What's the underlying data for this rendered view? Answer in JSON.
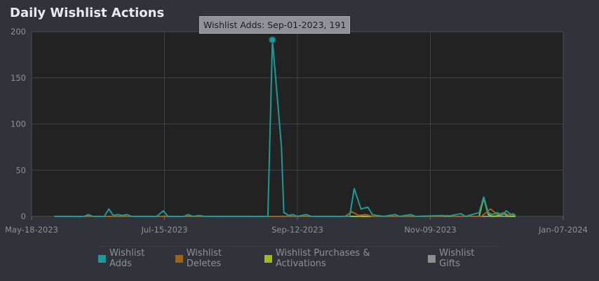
{
  "panel": {
    "title": "Daily Wishlist Actions"
  },
  "tooltip": {
    "text": "Wishlist Adds: Sep-01-2023, 191"
  },
  "colors": {
    "background": "#30333a",
    "plot_background": "#222222",
    "grid": "#3f4248",
    "adds": "#1a9b99",
    "deletes": "#a0611a",
    "purchases": "#9cbc1e",
    "gifts": "#8e8e8e"
  },
  "chart_data": {
    "type": "line",
    "title": "Daily Wishlist Actions",
    "x_type": "date",
    "xlim": [
      "2023-05-18",
      "2024-01-07"
    ],
    "x_ticks": [
      "May-18-2023",
      "Jul-15-2023",
      "Sep-12-2023",
      "Nov-09-2023",
      "Jan-07-2024"
    ],
    "ylim": [
      0,
      200
    ],
    "y_ticks": [
      "0",
      "50",
      "100",
      "150",
      "200"
    ],
    "grid": true,
    "legend_placement": "bottom",
    "series": [
      {
        "name": "Wishlist Adds",
        "color": "#1a9b99",
        "points": [
          [
            "2023-05-28",
            0
          ],
          [
            "2023-06-10",
            0
          ],
          [
            "2023-06-12",
            2
          ],
          [
            "2023-06-14",
            0
          ],
          [
            "2023-06-19",
            0
          ],
          [
            "2023-06-21",
            8
          ],
          [
            "2023-06-23",
            1
          ],
          [
            "2023-06-25",
            2
          ],
          [
            "2023-06-27",
            1
          ],
          [
            "2023-06-29",
            2
          ],
          [
            "2023-07-01",
            0
          ],
          [
            "2023-07-12",
            0
          ],
          [
            "2023-07-15",
            6
          ],
          [
            "2023-07-17",
            0
          ],
          [
            "2023-07-24",
            0
          ],
          [
            "2023-07-26",
            2
          ],
          [
            "2023-07-28",
            0
          ],
          [
            "2023-07-31",
            1
          ],
          [
            "2023-08-02",
            0
          ],
          [
            "2023-08-30",
            0
          ],
          [
            "2023-09-01",
            191
          ],
          [
            "2023-09-05",
            75
          ],
          [
            "2023-09-06",
            4
          ],
          [
            "2023-09-07",
            3
          ],
          [
            "2023-09-08",
            1
          ],
          [
            "2023-09-10",
            2
          ],
          [
            "2023-09-12",
            0
          ],
          [
            "2023-09-16",
            2
          ],
          [
            "2023-09-18",
            0
          ],
          [
            "2023-10-05",
            0
          ],
          [
            "2023-10-07",
            30
          ],
          [
            "2023-10-10",
            8
          ],
          [
            "2023-10-13",
            10
          ],
          [
            "2023-10-15",
            2
          ],
          [
            "2023-10-17",
            1
          ],
          [
            "2023-10-20",
            0
          ],
          [
            "2023-10-25",
            2
          ],
          [
            "2023-10-27",
            0
          ],
          [
            "2023-11-01",
            2
          ],
          [
            "2023-11-03",
            0
          ],
          [
            "2023-11-15",
            1
          ],
          [
            "2023-11-17",
            0
          ],
          [
            "2023-11-23",
            3
          ],
          [
            "2023-11-25",
            0
          ],
          [
            "2023-12-01",
            4
          ],
          [
            "2023-12-03",
            21
          ],
          [
            "2023-12-05",
            4
          ],
          [
            "2023-12-07",
            2
          ],
          [
            "2023-12-09",
            4
          ],
          [
            "2023-12-11",
            1
          ],
          [
            "2023-12-13",
            6
          ],
          [
            "2023-12-15",
            2
          ],
          [
            "2023-12-17",
            1
          ]
        ]
      },
      {
        "name": "Wishlist Deletes",
        "color": "#a0611a",
        "points": [
          [
            "2023-05-28",
            0
          ],
          [
            "2023-10-03",
            0
          ],
          [
            "2023-10-06",
            5
          ],
          [
            "2023-10-09",
            1
          ],
          [
            "2023-10-12",
            2
          ],
          [
            "2023-10-15",
            0
          ],
          [
            "2023-11-15",
            0
          ],
          [
            "2023-11-17",
            1
          ],
          [
            "2023-11-19",
            0
          ],
          [
            "2023-12-02",
            0
          ],
          [
            "2023-12-06",
            8
          ],
          [
            "2023-12-09",
            2
          ],
          [
            "2023-12-12",
            4
          ],
          [
            "2023-12-14",
            1
          ],
          [
            "2023-12-16",
            3
          ],
          [
            "2023-12-17",
            1
          ]
        ]
      },
      {
        "name": "Wishlist Purchases & Activations",
        "color": "#9cbc1e",
        "points": [
          [
            "2023-05-28",
            0
          ],
          [
            "2023-12-01",
            0
          ],
          [
            "2023-12-03",
            20
          ],
          [
            "2023-12-05",
            2
          ],
          [
            "2023-12-07",
            0
          ],
          [
            "2023-12-10",
            1
          ],
          [
            "2023-12-12",
            3
          ],
          [
            "2023-12-14",
            0
          ],
          [
            "2023-12-17",
            0
          ]
        ]
      },
      {
        "name": "Wishlist Gifts",
        "color": "#8e8e8e",
        "points": [
          [
            "2023-05-28",
            0
          ],
          [
            "2023-12-17",
            0
          ]
        ]
      }
    ],
    "highlight": {
      "series": "Wishlist Adds",
      "x": "2023-09-01",
      "y": 191
    }
  }
}
